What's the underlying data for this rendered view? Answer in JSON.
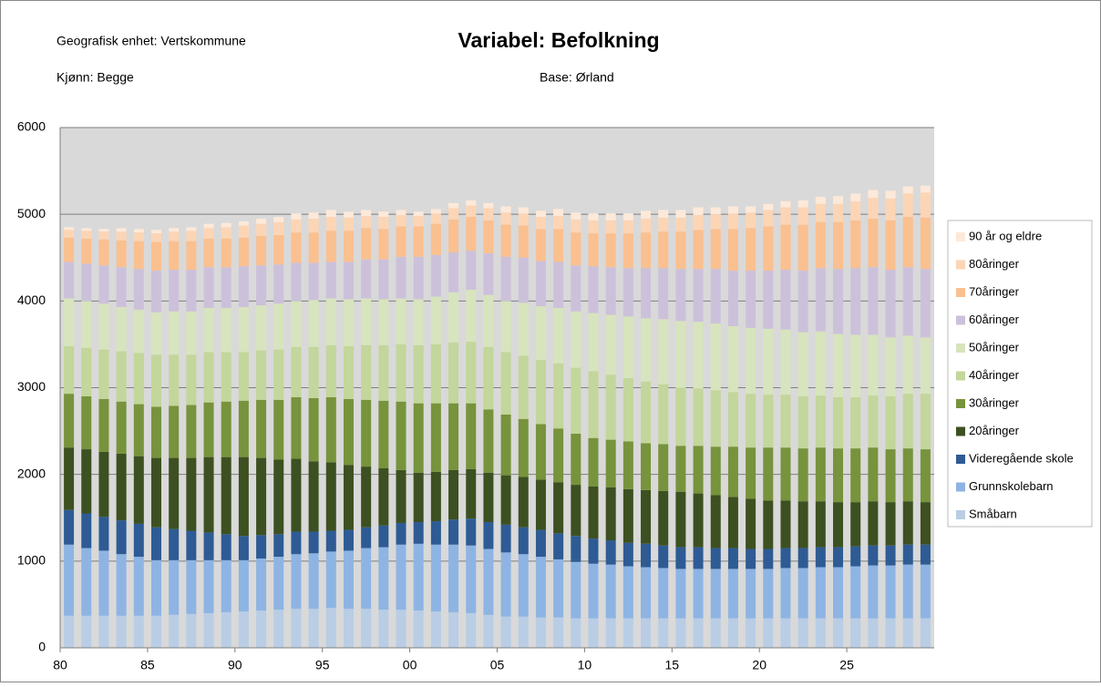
{
  "chart_data": {
    "type": "stacked-bar",
    "title": "Variabel: Befolkning",
    "annotations": [
      "Geografisk enhet: Vertskommune",
      "Kjønn: Begge",
      "Base: Ørland"
    ],
    "categories": [
      "80",
      null,
      null,
      null,
      null,
      "85",
      null,
      null,
      null,
      null,
      "90",
      null,
      null,
      null,
      null,
      "95",
      null,
      null,
      null,
      null,
      "00",
      null,
      null,
      null,
      null,
      "05",
      null,
      null,
      null,
      null,
      "10",
      null,
      null,
      null,
      null,
      "15",
      null,
      null,
      null,
      null,
      "20",
      null,
      null,
      null,
      null,
      "25",
      null,
      null,
      null,
      null
    ],
    "ylim": [
      0,
      6000
    ],
    "yticks": [
      0,
      1000,
      2000,
      3000,
      4000,
      5000,
      6000
    ],
    "grid": true,
    "legend": "right",
    "series": [
      {
        "name": "Småbarn",
        "color": "#b9cde5",
        "values": [
          370,
          370,
          370,
          370,
          370,
          370,
          380,
          390,
          400,
          410,
          420,
          430,
          440,
          450,
          450,
          460,
          450,
          450,
          440,
          440,
          430,
          420,
          410,
          400,
          380,
          360,
          360,
          350,
          350,
          340,
          340,
          340,
          340,
          340,
          340,
          340,
          340,
          340,
          340,
          340,
          340,
          340,
          340,
          340,
          340,
          340,
          340,
          340,
          340,
          340
        ]
      },
      {
        "name": "Grunnskolebarn",
        "color": "#8eb4e3",
        "values": [
          820,
          780,
          750,
          710,
          680,
          640,
          630,
          620,
          610,
          600,
          590,
          600,
          610,
          630,
          640,
          650,
          670,
          700,
          720,
          750,
          770,
          770,
          780,
          780,
          760,
          740,
          720,
          700,
          670,
          650,
          630,
          620,
          600,
          590,
          580,
          570,
          570,
          570,
          570,
          570,
          570,
          580,
          580,
          590,
          590,
          600,
          610,
          610,
          620,
          620
        ]
      },
      {
        "name": "Videregående skole",
        "color": "#2e5b94",
        "values": [
          400,
          400,
          390,
          390,
          380,
          380,
          360,
          340,
          320,
          300,
          280,
          270,
          260,
          260,
          250,
          240,
          240,
          240,
          250,
          250,
          250,
          270,
          290,
          310,
          310,
          320,
          310,
          310,
          300,
          300,
          290,
          280,
          270,
          270,
          260,
          250,
          250,
          240,
          240,
          230,
          230,
          230,
          230,
          230,
          230,
          230,
          230,
          230,
          230,
          230
        ]
      },
      {
        "name": "20åringer",
        "color": "#3d5021",
        "values": [
          720,
          740,
          750,
          770,
          780,
          800,
          820,
          840,
          870,
          890,
          910,
          890,
          860,
          840,
          810,
          790,
          750,
          700,
          660,
          610,
          570,
          570,
          570,
          570,
          570,
          570,
          580,
          580,
          590,
          590,
          600,
          610,
          620,
          620,
          630,
          640,
          620,
          610,
          590,
          580,
          560,
          550,
          540,
          530,
          520,
          510,
          510,
          500,
          500,
          490
        ]
      },
      {
        "name": "30åringer",
        "color": "#77933c",
        "values": [
          620,
          610,
          610,
          600,
          600,
          590,
          600,
          610,
          630,
          640,
          650,
          670,
          690,
          710,
          730,
          750,
          760,
          770,
          780,
          790,
          800,
          790,
          770,
          760,
          730,
          700,
          670,
          640,
          620,
          590,
          560,
          550,
          550,
          540,
          540,
          530,
          550,
          560,
          580,
          590,
          610,
          610,
          610,
          620,
          620,
          620,
          620,
          610,
          610,
          610
        ]
      },
      {
        "name": "40åringer",
        "color": "#c3d69b",
        "values": [
          550,
          560,
          570,
          580,
          590,
          600,
          590,
          580,
          580,
          570,
          560,
          570,
          580,
          580,
          590,
          600,
          610,
          630,
          640,
          660,
          670,
          680,
          700,
          710,
          720,
          720,
          730,
          740,
          750,
          760,
          770,
          750,
          730,
          710,
          690,
          670,
          660,
          650,
          630,
          620,
          610,
          610,
          600,
          600,
          590,
          590,
          600,
          610,
          630,
          640
        ]
      },
      {
        "name": "50åringer",
        "color": "#d7e4bd",
        "values": [
          550,
          540,
          530,
          510,
          500,
          490,
          500,
          500,
          510,
          510,
          520,
          520,
          530,
          530,
          540,
          540,
          540,
          540,
          530,
          530,
          530,
          550,
          580,
          600,
          600,
          590,
          610,
          620,
          640,
          650,
          670,
          690,
          710,
          730,
          750,
          770,
          770,
          770,
          760,
          760,
          760,
          750,
          740,
          740,
          730,
          720,
          700,
          680,
          670,
          650
        ]
      },
      {
        "name": "60åringer",
        "color": "#ccc1da",
        "values": [
          420,
          430,
          440,
          460,
          470,
          480,
          480,
          480,
          470,
          470,
          470,
          460,
          450,
          440,
          430,
          420,
          430,
          450,
          460,
          480,
          490,
          480,
          460,
          450,
          480,
          510,
          520,
          520,
          530,
          530,
          540,
          550,
          560,
          580,
          590,
          600,
          610,
          630,
          640,
          660,
          670,
          690,
          710,
          730,
          750,
          770,
          780,
          780,
          790,
          790
        ]
      },
      {
        "name": "70åringer",
        "color": "#fac090",
        "values": [
          280,
          290,
          300,
          310,
          320,
          330,
          330,
          330,
          330,
          330,
          330,
          340,
          340,
          350,
          350,
          360,
          360,
          360,
          350,
          350,
          350,
          360,
          380,
          390,
          380,
          370,
          370,
          370,
          380,
          380,
          380,
          390,
          400,
          410,
          420,
          430,
          450,
          460,
          480,
          490,
          510,
          520,
          530,
          530,
          540,
          550,
          560,
          570,
          580,
          590
        ]
      },
      {
        "name": "80åringer",
        "color": "#fcd5b5",
        "values": [
          90,
          90,
          90,
          100,
          100,
          100,
          110,
          120,
          120,
          130,
          140,
          140,
          150,
          150,
          160,
          160,
          150,
          140,
          140,
          130,
          120,
          120,
          130,
          130,
          140,
          140,
          140,
          140,
          150,
          150,
          150,
          150,
          150,
          160,
          160,
          160,
          170,
          170,
          180,
          180,
          190,
          200,
          200,
          210,
          210,
          220,
          240,
          250,
          270,
          290
        ]
      },
      {
        "name": "90 år og eldre",
        "color": "#fde9d9",
        "values": [
          30,
          30,
          30,
          40,
          40,
          40,
          40,
          40,
          50,
          50,
          50,
          60,
          60,
          70,
          70,
          80,
          70,
          70,
          60,
          60,
          50,
          50,
          60,
          60,
          60,
          70,
          70,
          70,
          80,
          80,
          80,
          80,
          80,
          90,
          90,
          90,
          90,
          80,
          80,
          70,
          70,
          70,
          80,
          80,
          90,
          90,
          90,
          90,
          80,
          80
        ]
      }
    ]
  }
}
